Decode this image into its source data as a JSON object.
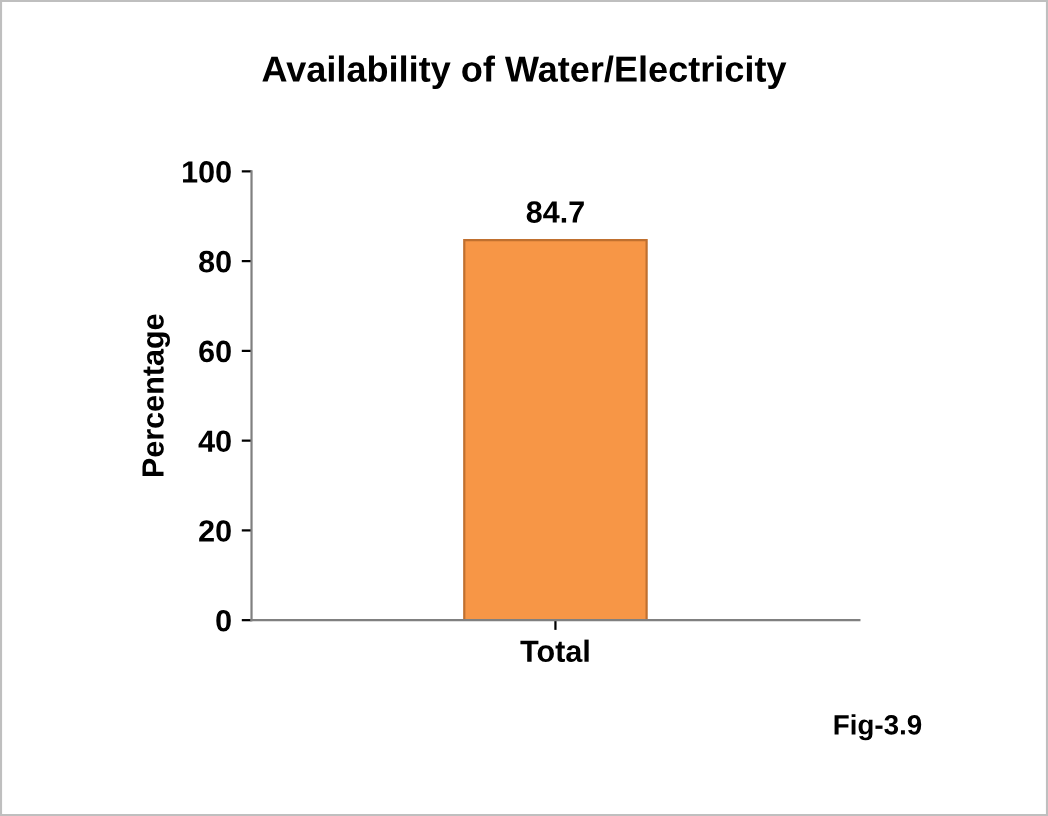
{
  "chart_data": {
    "type": "bar",
    "title": "Availability of Water/Electricity",
    "ylabel": "Percentage",
    "categories": [
      "Total"
    ],
    "values": [
      84.7
    ],
    "color": "#f79646",
    "ylim": [
      0,
      100
    ],
    "yticks": [
      0,
      20,
      40,
      60,
      80,
      100
    ],
    "grid": false,
    "data_labels": true,
    "annotations": [
      "Fig-3.9"
    ]
  }
}
